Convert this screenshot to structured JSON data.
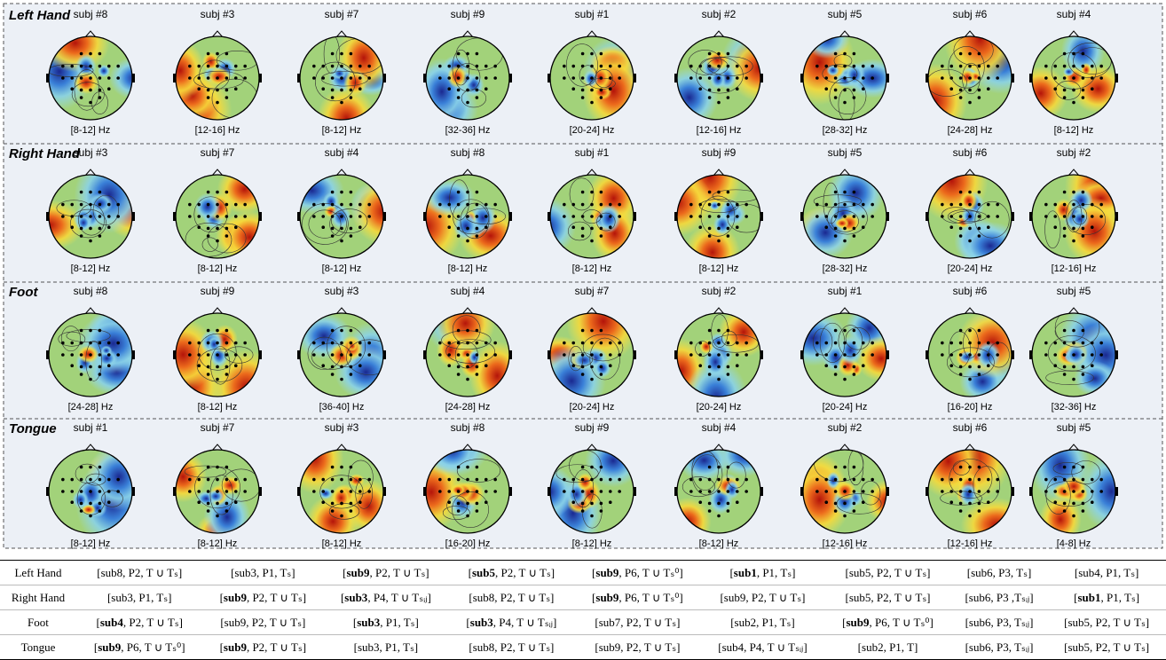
{
  "figure": {
    "rows": [
      {
        "title": "Left Hand",
        "maps": [
          {
            "subject": "subj #8",
            "band": "[8-12] Hz"
          },
          {
            "subject": "subj #3",
            "band": "[12-16] Hz"
          },
          {
            "subject": "subj #7",
            "band": "[8-12] Hz"
          },
          {
            "subject": "subj #9",
            "band": "[32-36] Hz"
          },
          {
            "subject": "subj #1",
            "band": "[20-24] Hz"
          },
          {
            "subject": "subj #2",
            "band": "[12-16] Hz"
          },
          {
            "subject": "subj #5",
            "band": "[28-32] Hz"
          },
          {
            "subject": "subj #6",
            "band": "[24-28] Hz"
          },
          {
            "subject": "subj #4",
            "band": "[8-12] Hz"
          }
        ]
      },
      {
        "title": "Right Hand",
        "maps": [
          {
            "subject": "subj #3",
            "band": "[8-12] Hz"
          },
          {
            "subject": "subj #7",
            "band": "[8-12] Hz"
          },
          {
            "subject": "subj #4",
            "band": "[8-12] Hz"
          },
          {
            "subject": "subj #8",
            "band": "[8-12] Hz"
          },
          {
            "subject": "subj #1",
            "band": "[8-12] Hz"
          },
          {
            "subject": "subj #9",
            "band": "[8-12] Hz"
          },
          {
            "subject": "subj #5",
            "band": "[28-32] Hz"
          },
          {
            "subject": "subj #6",
            "band": "[20-24] Hz"
          },
          {
            "subject": "subj #2",
            "band": "[12-16] Hz"
          }
        ]
      },
      {
        "title": "Foot",
        "maps": [
          {
            "subject": "subj #8",
            "band": "[24-28] Hz"
          },
          {
            "subject": "subj #9",
            "band": "[8-12] Hz"
          },
          {
            "subject": "subj #3",
            "band": "[36-40] Hz"
          },
          {
            "subject": "subj #4",
            "band": "[24-28] Hz"
          },
          {
            "subject": "subj #7",
            "band": "[20-24] Hz"
          },
          {
            "subject": "subj #2",
            "band": "[20-24] Hz"
          },
          {
            "subject": "subj #1",
            "band": "[20-24] Hz"
          },
          {
            "subject": "subj #6",
            "band": "[16-20] Hz"
          },
          {
            "subject": "subj #5",
            "band": "[32-36] Hz"
          }
        ]
      },
      {
        "title": "Tongue",
        "maps": [
          {
            "subject": "subj #1",
            "band": "[8-12] Hz"
          },
          {
            "subject": "subj #7",
            "band": "[8-12] Hz"
          },
          {
            "subject": "subj #3",
            "band": "[8-12] Hz"
          },
          {
            "subject": "subj #8",
            "band": "[16-20] Hz"
          },
          {
            "subject": "subj #9",
            "band": "[8-12] Hz"
          },
          {
            "subject": "subj #4",
            "band": "[8-12] Hz"
          },
          {
            "subject": "subj #2",
            "band": "[12-16] Hz"
          },
          {
            "subject": "subj #6",
            "band": "[12-16] Hz"
          },
          {
            "subject": "subj #5",
            "band": "[4-8] Hz"
          }
        ]
      }
    ]
  },
  "table": {
    "rows": [
      {
        "label": "Left Hand",
        "cells": [
          [
            "[",
            "sub8",
            ", P2, T ∪ Tₛ]"
          ],
          [
            "[",
            "sub3",
            ", P1, Tₛ]"
          ],
          [
            "[",
            "sub9",
            ", P2, T ∪ Tₛ]"
          ],
          [
            "[",
            "sub5",
            ", P2, T ∪ Tₛ]"
          ],
          [
            "[",
            "sub9",
            ", P6, T ∪ Tₛ⁰]"
          ],
          [
            "[",
            "sub1",
            ", P1, Tₛ]"
          ],
          [
            "[",
            "sub5",
            ", P2, T ∪ Tₛ]"
          ],
          [
            "[",
            "sub6",
            ", P3, Tₛ]"
          ],
          [
            "[",
            "sub4",
            ", P1, Tₛ]"
          ]
        ],
        "bold": [
          false,
          false,
          true,
          true,
          true,
          true,
          false,
          false,
          false
        ]
      },
      {
        "label": "Right Hand",
        "cells": [
          [
            "[",
            "sub3",
            ", P1, Tₛ]"
          ],
          [
            "[",
            "sub9",
            ", P2, T ∪ Tₛ]"
          ],
          [
            "[",
            "sub3",
            ", P4, T ∪ Tₛᵢⱼ]"
          ],
          [
            "[",
            "sub8",
            ", P2, T ∪ Tₛ]"
          ],
          [
            "[",
            "sub9",
            ", P6, T ∪ Tₛ⁰]"
          ],
          [
            "[",
            "sub9",
            ", P2, T ∪ Tₛ]"
          ],
          [
            "[",
            "sub5",
            ", P2, T ∪ Tₛ]"
          ],
          [
            "[",
            "sub6",
            ", P3 ,Tₛᵢⱼ]"
          ],
          [
            "[",
            "sub1",
            ", P1, Tₛ]"
          ]
        ],
        "bold": [
          false,
          true,
          true,
          false,
          true,
          false,
          false,
          false,
          true
        ]
      },
      {
        "label": "Foot",
        "cells": [
          [
            "[",
            "sub4",
            ", P2, T ∪ Tₛ]"
          ],
          [
            "[",
            "sub9",
            ", P2, T ∪ Tₛ]"
          ],
          [
            "[",
            "sub3",
            ", P1, Tₛ]"
          ],
          [
            "[",
            "sub3",
            ", P4, T ∪ Tₛᵢⱼ]"
          ],
          [
            "[",
            "sub7",
            ", P2, T ∪ Tₛ]"
          ],
          [
            "[",
            "sub2",
            ", P1, Tₛ]"
          ],
          [
            "[",
            "sub9",
            ", P6, T ∪ Tₛ⁰]"
          ],
          [
            "[",
            "sub6",
            ", P3, Tₛᵢⱼ]"
          ],
          [
            "[",
            "sub5",
            ", P2, T ∪ Tₛ]"
          ]
        ],
        "bold": [
          true,
          false,
          true,
          true,
          false,
          false,
          true,
          false,
          false
        ]
      },
      {
        "label": "Tongue",
        "cells": [
          [
            "[",
            "sub9",
            ", P6, T ∪ Tₛ⁰]"
          ],
          [
            "[",
            "sub9",
            ", P2, T ∪ Tₛ]"
          ],
          [
            "[",
            "sub3",
            ", P1, Tₛ]"
          ],
          [
            "[",
            "sub8",
            ", P2, T ∪ Tₛ]"
          ],
          [
            "[",
            "sub9",
            ", P2, T ∪ Tₛ]"
          ],
          [
            "[",
            "sub4",
            ", P4, T ∪ Tₛᵢⱼ]"
          ],
          [
            "[",
            "sub2",
            ", P1, T]"
          ],
          [
            "[",
            "sub6",
            ", P3, Tₛᵢⱼ]"
          ],
          [
            "[",
            "sub5",
            ", P2, T ∪ Tₛ]"
          ]
        ],
        "bold": [
          true,
          true,
          false,
          false,
          false,
          false,
          false,
          false,
          false
        ]
      }
    ]
  }
}
